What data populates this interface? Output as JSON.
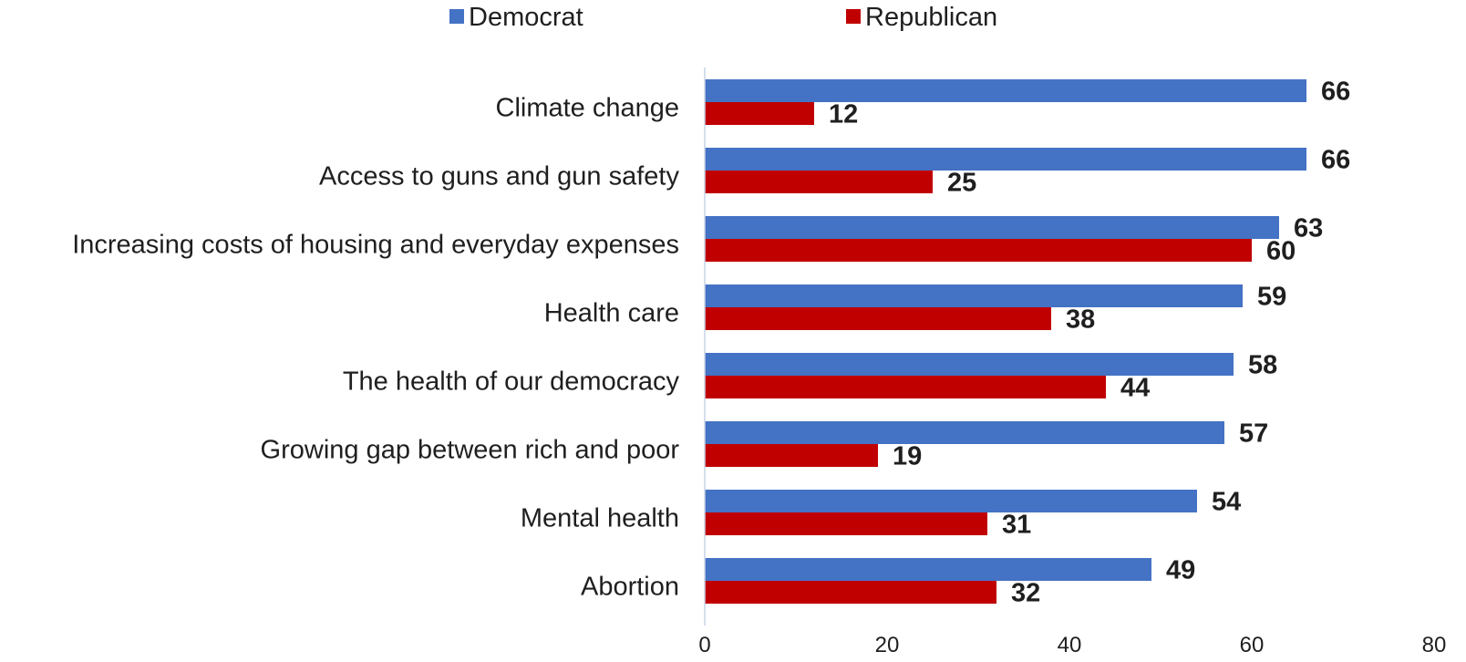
{
  "chart_data": {
    "type": "bar",
    "orientation": "horizontal",
    "categories": [
      "Climate change",
      "Access to guns and gun safety",
      "Increasing costs of housing and everyday expenses",
      "Health care",
      "The health of our democracy",
      "Growing gap between rich and poor",
      "Mental health",
      "Abortion"
    ],
    "series": [
      {
        "name": "Democrat",
        "color": "#4472C4",
        "values": [
          66,
          66,
          63,
          59,
          58,
          57,
          54,
          49
        ]
      },
      {
        "name": "Republican",
        "color": "#C00000",
        "values": [
          12,
          25,
          60,
          38,
          44,
          19,
          31,
          32
        ]
      }
    ],
    "xlim": [
      0,
      80
    ],
    "xticks": [
      0,
      20,
      40,
      60,
      80
    ],
    "title": "",
    "xlabel": "",
    "ylabel": "",
    "grid": false,
    "legend": "top-center",
    "data_labels": true
  }
}
